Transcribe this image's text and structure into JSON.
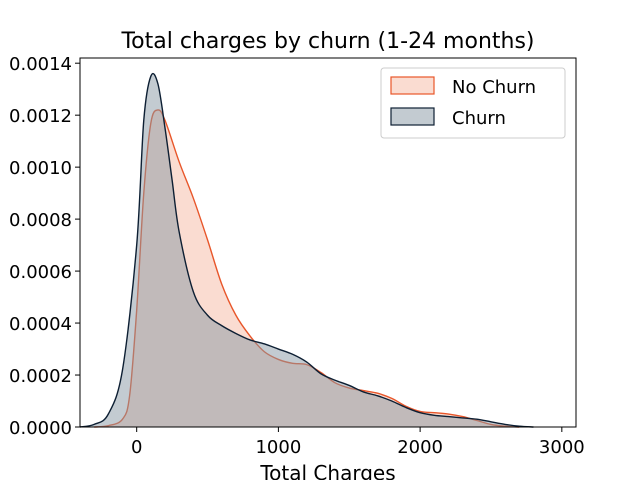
{
  "chart_data": {
    "type": "area",
    "title": "Total charges by churn (1-24 months)",
    "xlabel": "Total Charges",
    "ylabel": "",
    "xlim": [
      -400,
      3100
    ],
    "ylim": [
      0,
      0.00142
    ],
    "xticks": [
      0,
      1000,
      2000,
      3000
    ],
    "xtick_labels": [
      "0",
      "1000",
      "2000",
      "3000"
    ],
    "yticks": [
      0,
      0.0002,
      0.0004,
      0.0006,
      0.0008,
      0.001,
      0.0012,
      0.0014
    ],
    "ytick_labels": [
      "0.0000",
      "0.0002",
      "0.0004",
      "0.0006",
      "0.0008",
      "0.0010",
      "0.0012",
      "0.0014"
    ],
    "grid": false,
    "legend_position": "top-right",
    "series": [
      {
        "name": "No Churn",
        "color": "#e8562a",
        "fill": "#f5b9a3",
        "x": [
          -300,
          -200,
          -100,
          -50,
          0,
          50,
          100,
          150,
          200,
          300,
          400,
          500,
          600,
          700,
          800,
          900,
          1000,
          1100,
          1200,
          1300,
          1400,
          1500,
          1600,
          1700,
          1800,
          1900,
          2000,
          2100,
          2200,
          2300,
          2400,
          2500,
          2600,
          2700
        ],
        "values": [
          0,
          5e-06,
          3e-05,
          0.00012,
          0.00045,
          0.0009,
          0.00117,
          0.00122,
          0.00118,
          0.00102,
          0.00088,
          0.00072,
          0.00055,
          0.00043,
          0.00035,
          0.00029,
          0.00026,
          0.000245,
          0.00024,
          0.00021,
          0.00017,
          0.00015,
          0.00014,
          0.00013,
          0.00011,
          8e-05,
          6e-05,
          5.5e-05,
          5e-05,
          4e-05,
          2.5e-05,
          1e-05,
          3e-06,
          0
        ]
      },
      {
        "name": "Churn",
        "color": "#0d1f33",
        "fill": "#8898a4",
        "x": [
          -400,
          -300,
          -200,
          -100,
          0,
          50,
          100,
          150,
          200,
          250,
          300,
          400,
          500,
          600,
          700,
          800,
          900,
          1000,
          1100,
          1200,
          1300,
          1400,
          1500,
          1600,
          1700,
          1800,
          1900,
          2000,
          2100,
          2200,
          2300,
          2400,
          2500,
          2600,
          2700,
          2800
        ],
        "values": [
          0,
          1e-05,
          5e-05,
          0.00022,
          0.0007,
          0.00118,
          0.00135,
          0.00132,
          0.00115,
          0.00095,
          0.00075,
          0.00052,
          0.00043,
          0.00039,
          0.00036,
          0.000335,
          0.00032,
          0.0003,
          0.00028,
          0.00025,
          0.000205,
          0.00018,
          0.00016,
          0.000135,
          0.00012,
          0.0001,
          7.5e-05,
          5.5e-05,
          4.5e-05,
          4e-05,
          3.5e-05,
          3e-05,
          2e-05,
          1e-05,
          3e-06,
          0
        ]
      }
    ]
  }
}
